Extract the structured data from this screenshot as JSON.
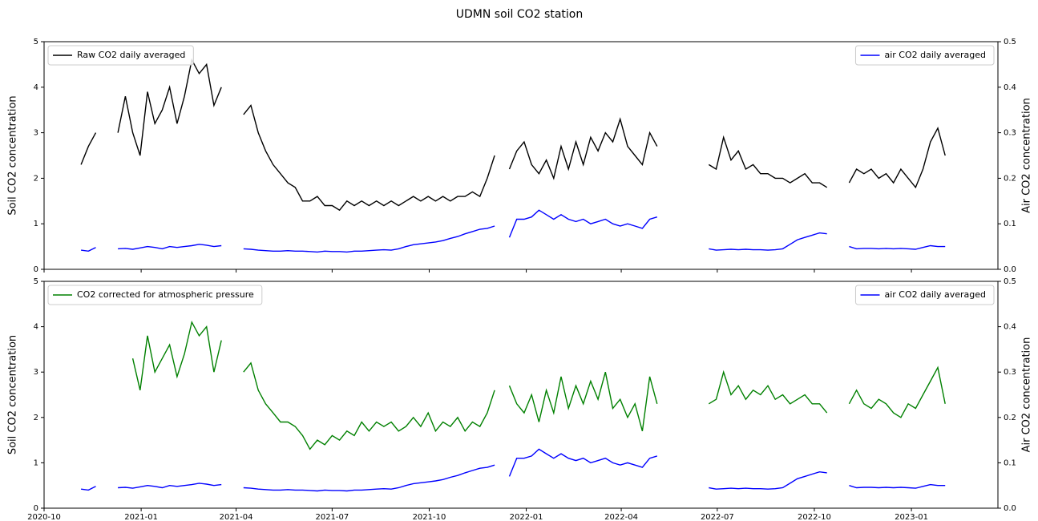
{
  "title": "UDMN soil CO2 station",
  "chart_data": [
    {
      "type": "line",
      "ylabel": "Soil CO2 concentration",
      "y2label": "Air CO2 concentration",
      "xlim": [
        "2020-10-01",
        "2023-03-24"
      ],
      "ylim": [
        0,
        5
      ],
      "yticks": [
        0,
        1,
        2,
        3,
        4,
        5
      ],
      "y2lim": [
        0,
        0.5
      ],
      "y2ticks": [
        {
          "value": 0,
          "label": "0.0"
        },
        0.1,
        0.2,
        0.3,
        0.4,
        0.5
      ],
      "legend_loc": "upper left",
      "legend2_loc": "upper right",
      "x": [
        "2020-11-05",
        "2020-11-12",
        "2020-11-19",
        "2020-11-26",
        "2020-12-03",
        "2020-12-10",
        "2020-12-17",
        "2020-12-24",
        "2020-12-31",
        "2021-01-07",
        "2021-01-14",
        "2021-01-21",
        "2021-01-28",
        "2021-02-04",
        "2021-02-11",
        "2021-02-18",
        "2021-02-25",
        "2021-03-04",
        "2021-03-11",
        "2021-03-18",
        "2021-03-25",
        "2021-04-01",
        "2021-04-08",
        "2021-04-15",
        "2021-04-22",
        "2021-04-29",
        "2021-05-06",
        "2021-05-13",
        "2021-05-20",
        "2021-05-27",
        "2021-06-03",
        "2021-06-10",
        "2021-06-17",
        "2021-06-24",
        "2021-07-01",
        "2021-07-08",
        "2021-07-15",
        "2021-07-22",
        "2021-07-29",
        "2021-08-05",
        "2021-08-12",
        "2021-08-19",
        "2021-08-26",
        "2021-09-02",
        "2021-09-09",
        "2021-09-16",
        "2021-09-23",
        "2021-09-30",
        "2021-10-07",
        "2021-10-14",
        "2021-10-21",
        "2021-10-28",
        "2021-11-04",
        "2021-11-11",
        "2021-11-18",
        "2021-11-25",
        "2021-12-02",
        "2021-12-09",
        "2021-12-16",
        "2021-12-23",
        "2021-12-30",
        "2022-01-06",
        "2022-01-13",
        "2022-01-20",
        "2022-01-27",
        "2022-02-03",
        "2022-02-10",
        "2022-02-17",
        "2022-02-24",
        "2022-03-03",
        "2022-03-10",
        "2022-03-17",
        "2022-03-24",
        "2022-03-31",
        "2022-04-07",
        "2022-04-14",
        "2022-04-21",
        "2022-04-28",
        "2022-05-05",
        "2022-05-12",
        "2022-05-19",
        "2022-05-26",
        "2022-06-02",
        "2022-06-09",
        "2022-06-16",
        "2022-06-23",
        "2022-06-30",
        "2022-07-07",
        "2022-07-14",
        "2022-07-21",
        "2022-07-28",
        "2022-08-04",
        "2022-08-11",
        "2022-08-18",
        "2022-08-25",
        "2022-09-01",
        "2022-09-08",
        "2022-09-15",
        "2022-09-22",
        "2022-09-29",
        "2022-10-06",
        "2022-10-13",
        "2022-10-20",
        "2022-10-27",
        "2022-11-03",
        "2022-11-10",
        "2022-11-17",
        "2022-11-24",
        "2022-12-01",
        "2022-12-08",
        "2022-12-15",
        "2022-12-22",
        "2022-12-29",
        "2023-01-05",
        "2023-01-12",
        "2023-01-19",
        "2023-01-26",
        "2023-02-02"
      ],
      "series": [
        {
          "name": "Raw CO2 daily averaged",
          "color": "#000000",
          "values": [
            2.3,
            2.7,
            3.0,
            null,
            null,
            3.0,
            3.8,
            3.0,
            2.5,
            3.9,
            3.2,
            3.5,
            4.0,
            3.2,
            3.8,
            4.6,
            4.3,
            4.5,
            3.6,
            4.0,
            null,
            null,
            3.4,
            3.6,
            3.0,
            2.6,
            2.3,
            2.1,
            1.9,
            1.8,
            1.5,
            1.5,
            1.6,
            1.4,
            1.4,
            1.3,
            1.5,
            1.4,
            1.5,
            1.4,
            1.5,
            1.4,
            1.5,
            1.4,
            1.5,
            1.6,
            1.5,
            1.6,
            1.5,
            1.6,
            1.5,
            1.6,
            1.6,
            1.7,
            1.6,
            2.0,
            2.5,
            null,
            2.2,
            2.6,
            2.8,
            2.3,
            2.1,
            2.4,
            2.0,
            2.7,
            2.2,
            2.8,
            2.3,
            2.9,
            2.6,
            3.0,
            2.8,
            3.3,
            2.7,
            2.5,
            2.3,
            3.0,
            2.7,
            null,
            null,
            null,
            null,
            null,
            null,
            2.3,
            2.2,
            2.9,
            2.4,
            2.6,
            2.2,
            2.3,
            2.1,
            2.1,
            2.0,
            2.0,
            1.9,
            2.0,
            2.1,
            1.9,
            1.9,
            1.8,
            null,
            null,
            1.9,
            2.2,
            2.1,
            2.2,
            2.0,
            2.1,
            1.9,
            2.2,
            2.0,
            1.8,
            2.2,
            2.8,
            3.1,
            2.5
          ]
        },
        {
          "name": "air CO2 daily averaged",
          "color": "#0000ff",
          "axis": "y2",
          "values": [
            0.042,
            0.04,
            0.048,
            null,
            null,
            0.045,
            0.046,
            0.044,
            0.047,
            0.05,
            0.048,
            0.045,
            0.05,
            0.048,
            0.05,
            0.052,
            0.055,
            0.053,
            0.05,
            0.052,
            null,
            null,
            0.045,
            0.044,
            0.042,
            0.041,
            0.04,
            0.04,
            0.041,
            0.04,
            0.04,
            0.039,
            0.038,
            0.04,
            0.039,
            0.039,
            0.038,
            0.04,
            0.04,
            0.041,
            0.042,
            0.043,
            0.042,
            0.045,
            0.05,
            0.054,
            0.056,
            0.058,
            0.06,
            0.063,
            0.068,
            0.072,
            0.078,
            0.083,
            0.088,
            0.09,
            0.095,
            null,
            0.07,
            0.11,
            0.11,
            0.115,
            0.13,
            0.12,
            0.11,
            0.12,
            0.11,
            0.105,
            0.11,
            0.1,
            0.105,
            0.11,
            0.1,
            0.095,
            0.1,
            0.095,
            0.09,
            0.11,
            0.115,
            null,
            null,
            null,
            null,
            null,
            null,
            0.045,
            0.042,
            0.043,
            0.044,
            0.043,
            0.044,
            0.043,
            0.043,
            0.042,
            0.043,
            0.045,
            0.055,
            0.065,
            0.07,
            0.075,
            0.08,
            0.078,
            null,
            null,
            0.05,
            0.045,
            0.046,
            0.046,
            0.045,
            0.046,
            0.045,
            0.046,
            0.045,
            0.044,
            0.048,
            0.052,
            0.05,
            0.05
          ]
        }
      ]
    },
    {
      "type": "line",
      "ylabel": "Soil CO2 concentration",
      "y2label": "Air CO2 concentration",
      "xlim": [
        "2020-10-01",
        "2023-03-24"
      ],
      "xticks": [
        "2020-10",
        "2021-01",
        "2021-04",
        "2021-07",
        "2021-10",
        "2022-01",
        "2022-04",
        "2022-07",
        "2022-10",
        "2023-01"
      ],
      "ylim": [
        0,
        5
      ],
      "yticks": [
        0,
        1,
        2,
        3,
        4,
        5
      ],
      "y2lim": [
        0,
        0.5
      ],
      "y2ticks": [
        {
          "value": 0,
          "label": "0.0"
        },
        0.1,
        0.2,
        0.3,
        0.4,
        0.5
      ],
      "legend_loc": "upper left",
      "legend2_loc": "upper right",
      "x": [
        "2020-11-05",
        "2020-11-12",
        "2020-11-19",
        "2020-11-26",
        "2020-12-03",
        "2020-12-10",
        "2020-12-17",
        "2020-12-24",
        "2020-12-31",
        "2021-01-07",
        "2021-01-14",
        "2021-01-21",
        "2021-01-28",
        "2021-02-04",
        "2021-02-11",
        "2021-02-18",
        "2021-02-25",
        "2021-03-04",
        "2021-03-11",
        "2021-03-18",
        "2021-03-25",
        "2021-04-01",
        "2021-04-08",
        "2021-04-15",
        "2021-04-22",
        "2021-04-29",
        "2021-05-06",
        "2021-05-13",
        "2021-05-20",
        "2021-05-27",
        "2021-06-03",
        "2021-06-10",
        "2021-06-17",
        "2021-06-24",
        "2021-07-01",
        "2021-07-08",
        "2021-07-15",
        "2021-07-22",
        "2021-07-29",
        "2021-08-05",
        "2021-08-12",
        "2021-08-19",
        "2021-08-26",
        "2021-09-02",
        "2021-09-09",
        "2021-09-16",
        "2021-09-23",
        "2021-09-30",
        "2021-10-07",
        "2021-10-14",
        "2021-10-21",
        "2021-10-28",
        "2021-11-04",
        "2021-11-11",
        "2021-11-18",
        "2021-11-25",
        "2021-12-02",
        "2021-12-09",
        "2021-12-16",
        "2021-12-23",
        "2021-12-30",
        "2022-01-06",
        "2022-01-13",
        "2022-01-20",
        "2022-01-27",
        "2022-02-03",
        "2022-02-10",
        "2022-02-17",
        "2022-02-24",
        "2022-03-03",
        "2022-03-10",
        "2022-03-17",
        "2022-03-24",
        "2022-03-31",
        "2022-04-07",
        "2022-04-14",
        "2022-04-21",
        "2022-04-28",
        "2022-05-05",
        "2022-05-12",
        "2022-05-19",
        "2022-05-26",
        "2022-06-02",
        "2022-06-09",
        "2022-06-16",
        "2022-06-23",
        "2022-06-30",
        "2022-07-07",
        "2022-07-14",
        "2022-07-21",
        "2022-07-28",
        "2022-08-04",
        "2022-08-11",
        "2022-08-18",
        "2022-08-25",
        "2022-09-01",
        "2022-09-08",
        "2022-09-15",
        "2022-09-22",
        "2022-09-29",
        "2022-10-06",
        "2022-10-13",
        "2022-10-20",
        "2022-10-27",
        "2022-11-03",
        "2022-11-10",
        "2022-11-17",
        "2022-11-24",
        "2022-12-01",
        "2022-12-08",
        "2022-12-15",
        "2022-12-22",
        "2022-12-29",
        "2023-01-05",
        "2023-01-12",
        "2023-01-19",
        "2023-01-26",
        "2023-02-02"
      ],
      "series": [
        {
          "name": "CO2 corrected for atmospheric pressure",
          "color": "#008000",
          "values": [
            null,
            null,
            null,
            null,
            null,
            null,
            null,
            3.3,
            2.6,
            3.8,
            3.0,
            3.3,
            3.6,
            2.9,
            3.4,
            4.1,
            3.8,
            4.0,
            3.0,
            3.7,
            null,
            null,
            3.0,
            3.2,
            2.6,
            2.3,
            2.1,
            1.9,
            1.9,
            1.8,
            1.6,
            1.3,
            1.5,
            1.4,
            1.6,
            1.5,
            1.7,
            1.6,
            1.9,
            1.7,
            1.9,
            1.8,
            1.9,
            1.7,
            1.8,
            2.0,
            1.8,
            2.1,
            1.7,
            1.9,
            1.8,
            2.0,
            1.7,
            1.9,
            1.8,
            2.1,
            2.6,
            null,
            2.7,
            2.3,
            2.1,
            2.5,
            1.9,
            2.6,
            2.1,
            2.9,
            2.2,
            2.7,
            2.3,
            2.8,
            2.4,
            3.0,
            2.2,
            2.4,
            2.0,
            2.3,
            1.7,
            2.9,
            2.3,
            null,
            null,
            null,
            null,
            null,
            null,
            2.3,
            2.4,
            3.0,
            2.5,
            2.7,
            2.4,
            2.6,
            2.5,
            2.7,
            2.4,
            2.5,
            2.3,
            2.4,
            2.5,
            2.3,
            2.3,
            2.1,
            null,
            null,
            2.3,
            2.6,
            2.3,
            2.2,
            2.4,
            2.3,
            2.1,
            2.0,
            2.3,
            2.2,
            2.5,
            2.8,
            3.1,
            2.3
          ]
        },
        {
          "name": "air CO2 daily averaged",
          "color": "#0000ff",
          "axis": "y2",
          "values": [
            0.042,
            0.04,
            0.048,
            null,
            null,
            0.045,
            0.046,
            0.044,
            0.047,
            0.05,
            0.048,
            0.045,
            0.05,
            0.048,
            0.05,
            0.052,
            0.055,
            0.053,
            0.05,
            0.052,
            null,
            null,
            0.045,
            0.044,
            0.042,
            0.041,
            0.04,
            0.04,
            0.041,
            0.04,
            0.04,
            0.039,
            0.038,
            0.04,
            0.039,
            0.039,
            0.038,
            0.04,
            0.04,
            0.041,
            0.042,
            0.043,
            0.042,
            0.045,
            0.05,
            0.054,
            0.056,
            0.058,
            0.06,
            0.063,
            0.068,
            0.072,
            0.078,
            0.083,
            0.088,
            0.09,
            0.095,
            null,
            0.07,
            0.11,
            0.11,
            0.115,
            0.13,
            0.12,
            0.11,
            0.12,
            0.11,
            0.105,
            0.11,
            0.1,
            0.105,
            0.11,
            0.1,
            0.095,
            0.1,
            0.095,
            0.09,
            0.11,
            0.115,
            null,
            null,
            null,
            null,
            null,
            null,
            0.045,
            0.042,
            0.043,
            0.044,
            0.043,
            0.044,
            0.043,
            0.043,
            0.042,
            0.043,
            0.045,
            0.055,
            0.065,
            0.07,
            0.075,
            0.08,
            0.078,
            null,
            null,
            0.05,
            0.045,
            0.046,
            0.046,
            0.045,
            0.046,
            0.045,
            0.046,
            0.045,
            0.044,
            0.048,
            0.052,
            0.05,
            0.05
          ]
        }
      ]
    }
  ]
}
